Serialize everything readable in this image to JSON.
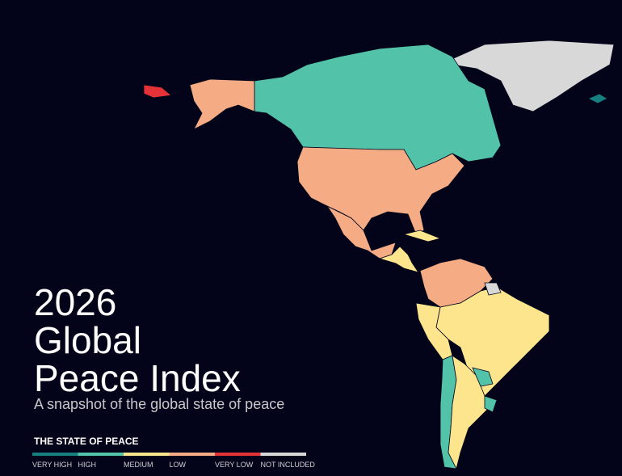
{
  "title": [
    "2026",
    "Global",
    "Peace Index"
  ],
  "subtitle": "A snapshot of the global state of peace",
  "legend": {
    "title": "THE STATE OF PEACE",
    "items": [
      {
        "label": "VERY HIGH",
        "color": "#177f80"
      },
      {
        "label": "HIGH",
        "color": "#52c2a8"
      },
      {
        "label": "MEDIUM",
        "color": "#fde58e"
      },
      {
        "label": "LOW",
        "color": "#f5ac85"
      },
      {
        "label": "VERY LOW",
        "color": "#e53238"
      },
      {
        "label": "NOT INCLUDED",
        "color": "#d8d8d8"
      }
    ]
  }
}
